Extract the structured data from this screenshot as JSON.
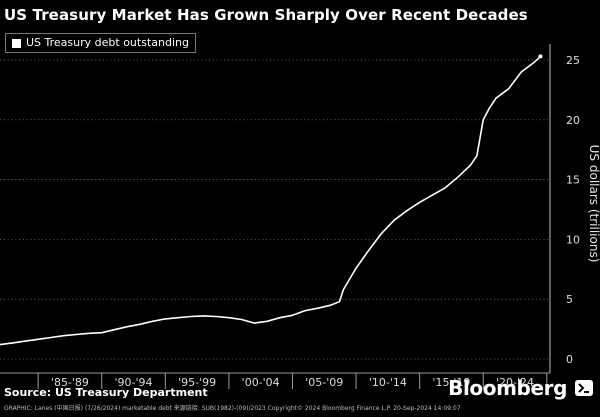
{
  "title": "US Treasury Market Has Grown Sharply Over Recent Decades",
  "chart_data": {
    "type": "line",
    "title": "US Treasury Market Has Grown Sharply Over Recent Decades",
    "xlabel": "",
    "ylabel": "US dollars (trillions)",
    "ylim": [
      0,
      26
    ],
    "grid": true,
    "legend_position": "top-left",
    "y_ticks": [
      0,
      5,
      10,
      15,
      20,
      25
    ],
    "x_categories": [
      "'85-'89",
      "'90-'94",
      "'95-'99",
      "'00-'04",
      "'05-'09",
      "'10-'14",
      "'15-'19",
      "'20-'24"
    ],
    "series": [
      {
        "name": "US Treasury debt outstanding",
        "color": "#ffffff",
        "x": [
          1982,
          1983,
          1984,
          1985,
          1986,
          1987,
          1988,
          1989,
          1990,
          1991,
          1992,
          1993,
          1994,
          1995,
          1996,
          1997,
          1998,
          1999,
          2000,
          2001,
          2002,
          2003,
          2004,
          2005,
          2006,
          2007,
          2008,
          2008.7,
          2009,
          2010,
          2011,
          2012,
          2013,
          2014,
          2015,
          2016,
          2017,
          2018,
          2019,
          2019.5,
          2020,
          2020.5,
          2021,
          2022,
          2023,
          2024,
          2024.5
        ],
        "values": [
          1.2,
          1.35,
          1.5,
          1.65,
          1.8,
          1.95,
          2.05,
          2.15,
          2.2,
          2.45,
          2.7,
          2.9,
          3.15,
          3.35,
          3.45,
          3.55,
          3.6,
          3.55,
          3.45,
          3.3,
          3.0,
          3.15,
          3.45,
          3.65,
          4.05,
          4.25,
          4.5,
          4.8,
          5.8,
          7.6,
          9.1,
          10.5,
          11.6,
          12.4,
          13.1,
          13.7,
          14.3,
          15.2,
          16.2,
          17.0,
          20.0,
          21.0,
          21.8,
          22.6,
          24.0,
          24.8,
          25.3
        ]
      }
    ]
  },
  "footer": {
    "source": "Source: US Treasury Department",
    "brand": "Bloomberg",
    "meta": "GRAPHIC: Lanes (中国日报)   (7/26/2024)   marketable debt   来源链接: SUB(1982)-(09)/2023                                     Copyright© 2024 Bloomberg Finance L.P.                                         20-Sep-2024 14:09:07"
  }
}
